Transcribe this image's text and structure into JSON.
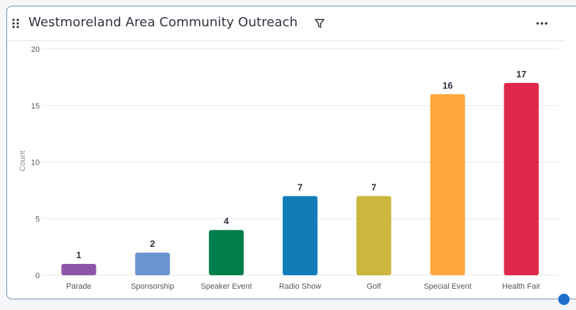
{
  "header": {
    "title": "Westmoreland Area Community Outreach",
    "drag_icon": "drag-handle-icon",
    "filter_icon": "filter-icon",
    "more_icon": "more-horizontal-icon"
  },
  "chart_data": {
    "type": "bar",
    "title": "Westmoreland Area Community Outreach",
    "xlabel": "",
    "ylabel": "Count",
    "ylim": [
      0,
      20
    ],
    "yticks": [
      0,
      5,
      10,
      15,
      20
    ],
    "grid": true,
    "categories": [
      "Parade",
      "Sponsorship",
      "Speaker Event",
      "Radio Show",
      "Golf",
      "Special Event",
      "Health Fair"
    ],
    "values": [
      1,
      2,
      4,
      7,
      7,
      16,
      17
    ],
    "colors": [
      "#8d56a8",
      "#6a93cf",
      "#007e4b",
      "#137cb8",
      "#cbb63e",
      "#fda73e",
      "#e0284d"
    ]
  },
  "colors": {
    "grid": "#e6e7ea",
    "axis_text": "#55575f",
    "value_text": "#2f3340",
    "border": "#6d8fb3",
    "handle": "#1f6fcd"
  }
}
